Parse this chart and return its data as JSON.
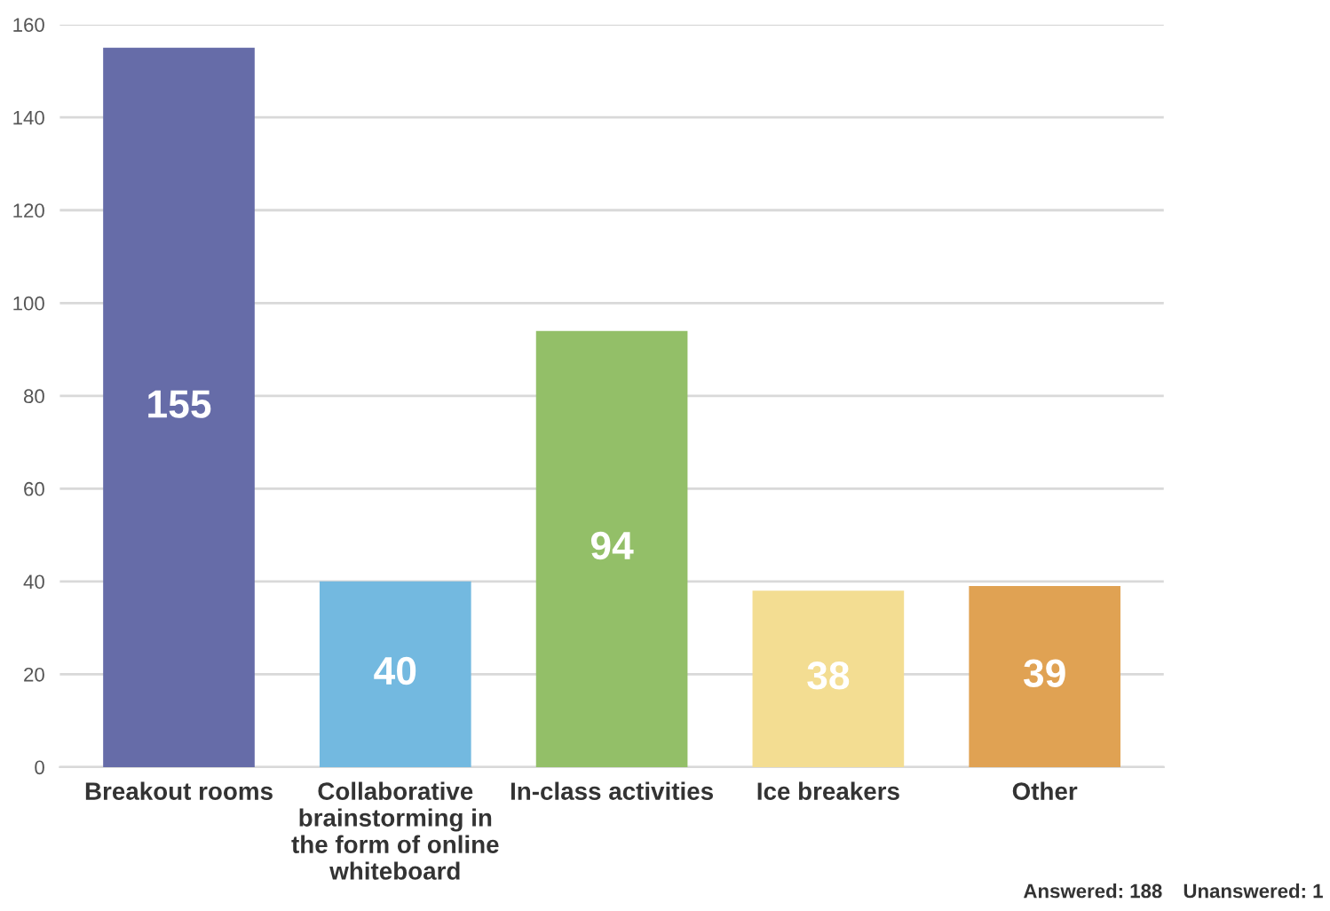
{
  "chart_data": {
    "type": "bar",
    "categories": [
      "Breakout rooms",
      "Collaborative\nbrainstorming in\nthe form of online\nwhiteboard",
      "In-class activities",
      "Ice breakers",
      "Other"
    ],
    "values": [
      155,
      40,
      94,
      38,
      39
    ],
    "colors": [
      "#666ca8",
      "#73b9e0",
      "#93bf68",
      "#f3dd92",
      "#e0a253"
    ],
    "data_labels": true,
    "ylim": [
      0,
      160
    ],
    "yticks": [
      0,
      20,
      40,
      60,
      80,
      100,
      120,
      140,
      160
    ],
    "grid": "y",
    "annotations": [
      "Answered: 188",
      "Unanswered: 1"
    ]
  }
}
